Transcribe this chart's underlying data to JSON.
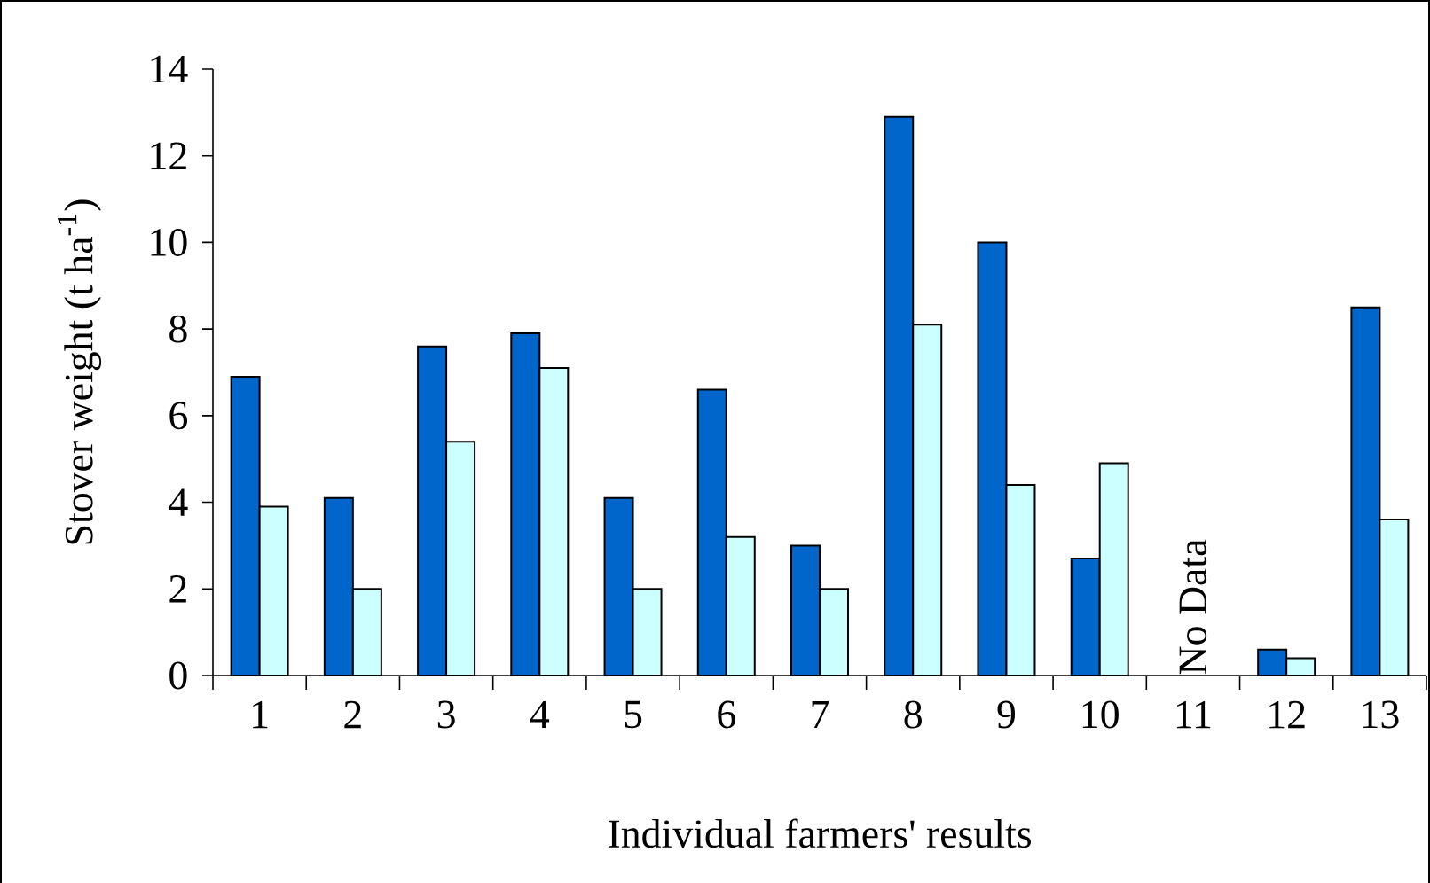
{
  "chart_data": {
    "type": "bar",
    "xlabel": "Individual farmers' results",
    "ylabel": "Stover weight (t ha$^{-1}$)",
    "categories": [
      "1",
      "2",
      "3",
      "4",
      "5",
      "6",
      "7",
      "8",
      "9",
      "10",
      "11",
      "12",
      "13"
    ],
    "series": [
      {
        "color": "#0066cc",
        "values": [
          6.9,
          4.1,
          7.6,
          7.9,
          4.1,
          6.6,
          3.0,
          12.9,
          10.0,
          2.7,
          null,
          0.6,
          8.5
        ]
      },
      {
        "color": "#ccffff",
        "values": [
          3.9,
          2.0,
          5.4,
          7.1,
          2.0,
          3.2,
          2.0,
          8.1,
          4.4,
          4.9,
          null,
          0.4,
          3.6
        ]
      }
    ],
    "ylim": [
      0,
      14
    ],
    "yticks": [
      0,
      2,
      4,
      6,
      8,
      10,
      12,
      14
    ],
    "annotations": [
      "No Data"
    ]
  }
}
